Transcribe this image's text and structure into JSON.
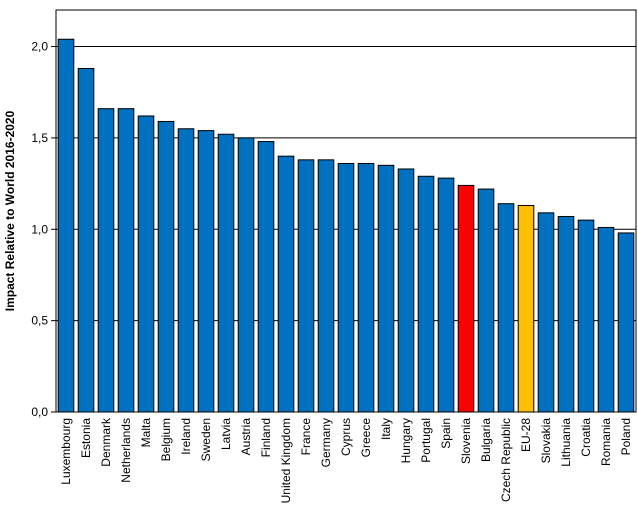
{
  "chart_data": {
    "type": "bar",
    "title": "",
    "xlabel": "",
    "ylabel": "Impact Relative to World 2016-2020",
    "ylim": [
      0,
      2.2
    ],
    "yticks": [
      "0,0",
      "0,5",
      "1,0",
      "1,5",
      "2,0"
    ],
    "ytick_values": [
      0,
      0.5,
      1.0,
      1.5,
      2.0
    ],
    "grid": true,
    "colors": {
      "default": "#0070C0",
      "highlight_red": "#FF0000",
      "highlight_yellow": "#FFC000",
      "outline": "#000000"
    },
    "categories": [
      "Luxembourg",
      "Estonia",
      "Denmark",
      "Netherlands",
      "Malta",
      "Belgium",
      "Ireland",
      "Sweden",
      "Latvia",
      "Austria",
      "Finland",
      "United Kingdom",
      "France",
      "Germany",
      "Cyprus",
      "Greece",
      "Italy",
      "Hungary",
      "Portugal",
      "Spain",
      "Slovenia",
      "Bulgaria",
      "Czech Republic",
      "EU-28",
      "Slovakia",
      "Lithuania",
      "Croatia",
      "Romania",
      "Poland"
    ],
    "values": [
      2.04,
      1.88,
      1.66,
      1.66,
      1.62,
      1.59,
      1.55,
      1.54,
      1.52,
      1.5,
      1.48,
      1.4,
      1.38,
      1.38,
      1.36,
      1.36,
      1.35,
      1.33,
      1.29,
      1.28,
      1.24,
      1.22,
      1.14,
      1.13,
      1.09,
      1.07,
      1.05,
      1.01,
      0.98
    ],
    "bar_colors": [
      "default",
      "default",
      "default",
      "default",
      "default",
      "default",
      "default",
      "default",
      "default",
      "default",
      "default",
      "default",
      "default",
      "default",
      "default",
      "default",
      "default",
      "default",
      "default",
      "default",
      "highlight_red",
      "default",
      "default",
      "highlight_yellow",
      "default",
      "default",
      "default",
      "default",
      "default"
    ]
  }
}
